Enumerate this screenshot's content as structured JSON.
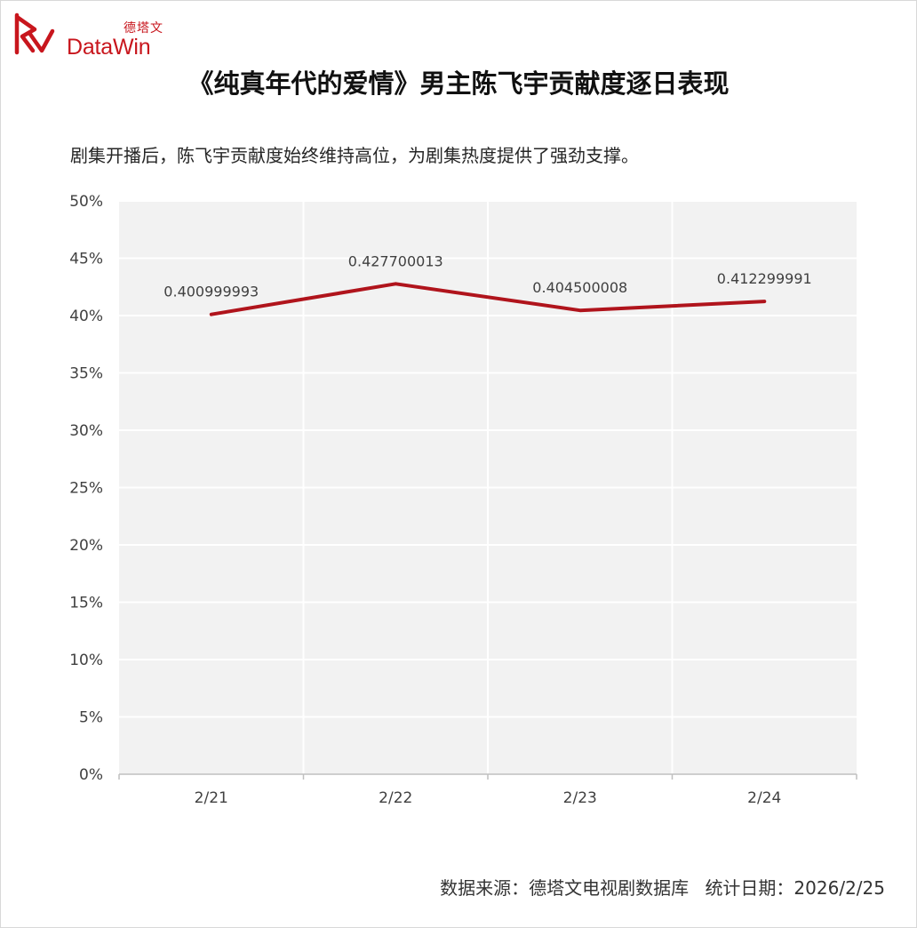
{
  "brand": {
    "name_cn": "德塔文",
    "name_en": "DataWin",
    "color": "#c8161d"
  },
  "title": "《纯真年代的爱情》男主陈飞宇贡献度逐日表现",
  "subtitle": "剧集开播后，陈飞宇贡献度始终维持高位，为剧集热度提供了强劲支撑。",
  "footer": {
    "source": "数据来源：德塔文电视剧数据库",
    "date": "统计日期：2026/2/25"
  },
  "chart_data": {
    "type": "line",
    "categories": [
      "2/21",
      "2/22",
      "2/23",
      "2/24"
    ],
    "series": [
      {
        "values": [
          0.400999993,
          0.427700013,
          0.404500008,
          0.412299991
        ],
        "labels": [
          "0.400999993",
          "0.427700013",
          "0.404500008",
          "0.412299991"
        ],
        "color": "#b0141c"
      }
    ],
    "ylim": [
      0,
      0.5
    ],
    "ytick_values": [
      0,
      0.05,
      0.1,
      0.15,
      0.2,
      0.25,
      0.3,
      0.35,
      0.4,
      0.45,
      0.5
    ],
    "ytick_labels": [
      "0%",
      "5%",
      "10%",
      "15%",
      "20%",
      "25%",
      "30%",
      "35%",
      "40%",
      "45%",
      "50%"
    ],
    "xlabel": "",
    "ylabel": "",
    "grid": true,
    "plot_background": "#f2f2f2",
    "grid_color": "#ffffff"
  }
}
